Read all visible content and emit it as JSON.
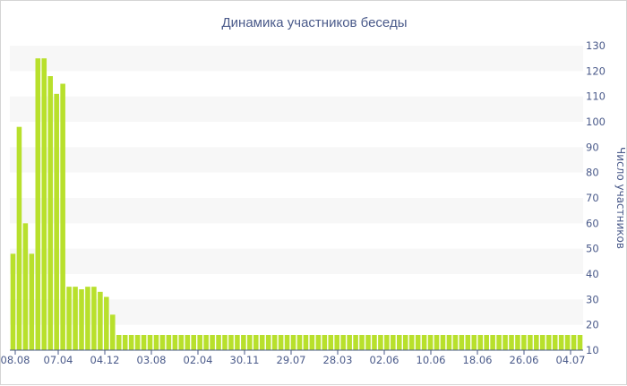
{
  "chart_data": {
    "type": "bar",
    "title": "Динамика участников беседы",
    "ylabel": "Число участников",
    "y_axis_position": "right",
    "ylim": [
      10,
      130
    ],
    "y_ticks": [
      10,
      20,
      30,
      40,
      50,
      60,
      70,
      80,
      90,
      100,
      110,
      120,
      130
    ],
    "x_tick_labels": [
      "08.08",
      "07.04",
      "04.12",
      "03.08",
      "02.04",
      "30.11",
      "29.07",
      "28.03",
      "02.06",
      "10.06",
      "18.06",
      "26.06",
      "04.07"
    ],
    "grid": "alternating horizontal bands",
    "legend": "none",
    "colors": {
      "bar": "#b8e02c",
      "band": "#f7f7f7",
      "text": "#4a5a8a",
      "border": "#d4d4d4"
    },
    "values": [
      48,
      98,
      60,
      48,
      125,
      125,
      118,
      111,
      115,
      35,
      35,
      34,
      35,
      35,
      33,
      31,
      24,
      16,
      16,
      16,
      16,
      16,
      16,
      16,
      16,
      16,
      16,
      16,
      16,
      16,
      16,
      16,
      16,
      16,
      16,
      16,
      16,
      16,
      16,
      16,
      16,
      16,
      16,
      16,
      16,
      16,
      16,
      16,
      16,
      16,
      16,
      16,
      16,
      16,
      16,
      16,
      16,
      16,
      16,
      16,
      16,
      16,
      16,
      16,
      16,
      16,
      16,
      16,
      16,
      16,
      16,
      16,
      16,
      16,
      16,
      16,
      16,
      16,
      16,
      16,
      16,
      16,
      16,
      16,
      16,
      16,
      16,
      16,
      16,
      16,
      16,
      16
    ]
  }
}
